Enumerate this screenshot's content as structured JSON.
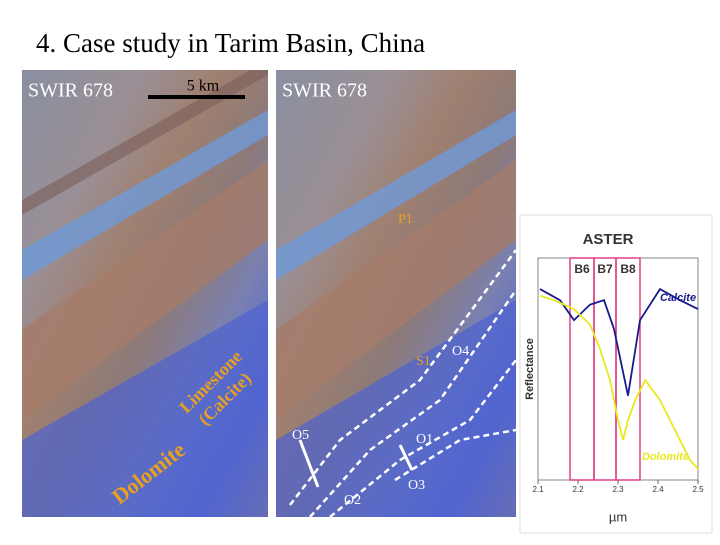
{
  "slide": {
    "title": "4. Case study in Tarim Basin, China",
    "left_image": {
      "label": "SWIR 678",
      "scale_bar": "5 km",
      "annotations": [
        "Limestone",
        "(Calcite)",
        "Dolomite"
      ]
    },
    "right_image": {
      "label": "SWIR 678",
      "annotations": [
        "P1",
        "S1",
        "O4",
        "O5",
        "O1",
        "O3",
        "O2"
      ]
    }
  },
  "chart_data": {
    "type": "line",
    "title": "ASTER",
    "y_label": "Reflectance",
    "x_label": "µm",
    "xlim": [
      2.1,
      2.5
    ],
    "xticks": [
      2.1,
      2.2,
      2.3,
      2.4,
      2.5
    ],
    "ylim": [
      0,
      1
    ],
    "bands": [
      {
        "name": "B6",
        "range": [
          2.18,
          2.24
        ]
      },
      {
        "name": "B7",
        "range": [
          2.24,
          2.295
        ]
      },
      {
        "name": "B8",
        "range": [
          2.295,
          2.355
        ]
      }
    ],
    "band_color": "#e0408a",
    "series": [
      {
        "name": "Calcite",
        "color": "#1a1a8c",
        "x": [
          2.105,
          2.155,
          2.19,
          2.23,
          2.265,
          2.29,
          2.325,
          2.355,
          2.405,
          2.455,
          2.5
        ],
        "values": [
          0.86,
          0.81,
          0.72,
          0.79,
          0.81,
          0.68,
          0.38,
          0.72,
          0.86,
          0.81,
          0.77
        ]
      },
      {
        "name": "Dolomite",
        "color": "#e8e820",
        "x": [
          2.105,
          2.14,
          2.19,
          2.23,
          2.255,
          2.28,
          2.3,
          2.313,
          2.325,
          2.343,
          2.368,
          2.405,
          2.43,
          2.455,
          2.48,
          2.5
        ],
        "values": [
          0.83,
          0.81,
          0.77,
          0.7,
          0.59,
          0.45,
          0.27,
          0.18,
          0.27,
          0.36,
          0.45,
          0.36,
          0.27,
          0.18,
          0.09,
          0.05
        ]
      }
    ]
  }
}
